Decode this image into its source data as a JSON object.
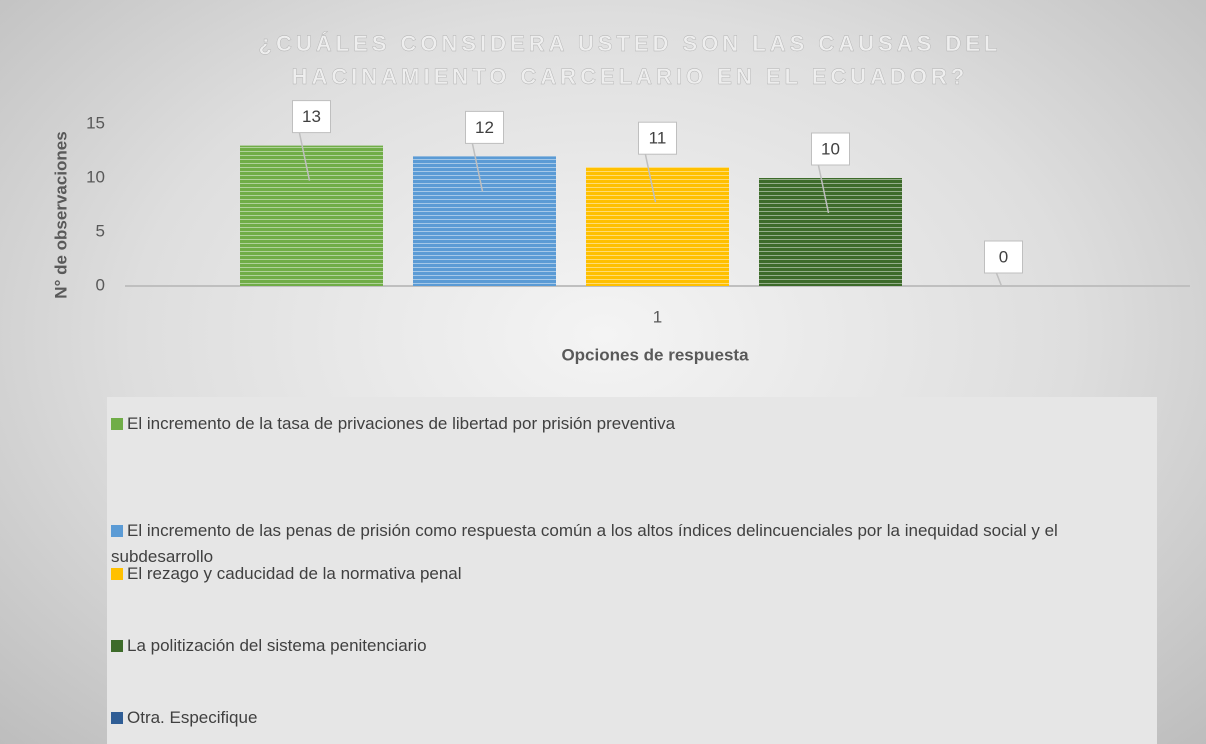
{
  "chart_data": {
    "type": "bar",
    "title": "¿CUÁLES CONSIDERA USTED SON LAS CAUSAS DEL HACINAMIENTO CARCELARIO EN EL ECUADOR?",
    "title_lines": [
      "¿CUÁLES CONSIDERA USTED SON LAS CAUSAS DEL",
      "HACINAMIENTO CARCELARIO EN EL ECUADOR?"
    ],
    "x_label": "Opciones de respuesta",
    "y_label": "N° de observaciones",
    "categories": [
      "1"
    ],
    "series": [
      {
        "name": "El incremento de la tasa de privaciones de libertad por prisión preventiva",
        "color": "#70ad47",
        "values": [
          13
        ]
      },
      {
        "name": "El incremento de las penas de prisión como respuesta común a los altos índices delincuenciales por la inequidad social y el subdesarrollo",
        "color": "#5b9bd5",
        "values": [
          12
        ]
      },
      {
        "name": "El rezago y caducidad de la normativa penal",
        "color": "#ffc000",
        "values": [
          11
        ]
      },
      {
        "name": "La politización del sistema penitenciario",
        "color": "#3d6b2a",
        "values": [
          10
        ]
      },
      {
        "name": "Otra. Especifique",
        "color": "#2f5d95",
        "values": [
          0
        ]
      }
    ],
    "ylim": [
      0,
      15
    ],
    "yticks": [
      0,
      5,
      10,
      15
    ],
    "grid": false,
    "legend": "bottom"
  }
}
